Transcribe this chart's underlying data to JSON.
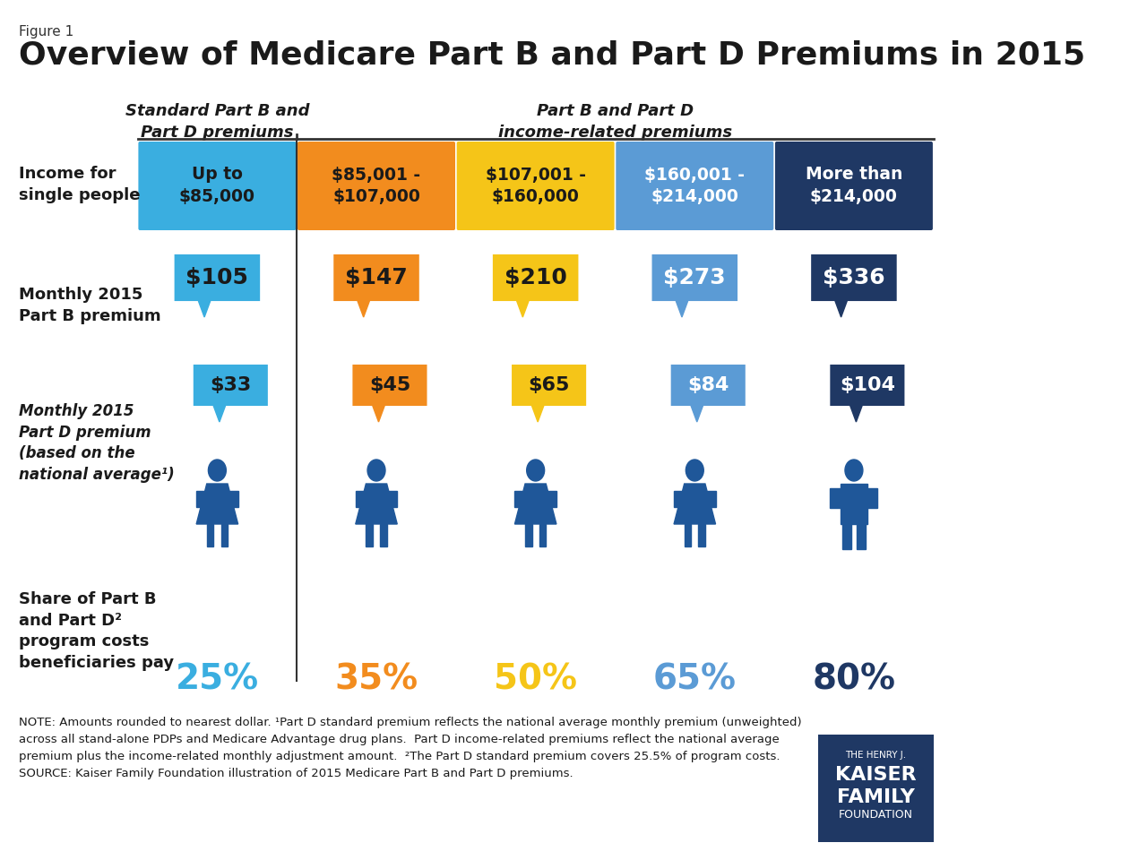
{
  "figure_label": "Figure 1",
  "title": "Overview of Medicare Part B and Part D Premiums in 2015",
  "col_header_left": "Standard Part B and\nPart D premiums",
  "col_header_right": "Part B and Part D\nincome-related premiums",
  "income_labels": [
    "Up to\n$85,000",
    "$85,001 -\n$107,000",
    "$107,001 -\n$160,000",
    "$160,001 -\n$214,000",
    "More than\n$214,000"
  ],
  "income_colors": [
    "#3AAEE0",
    "#F28C1E",
    "#F5C518",
    "#5B9BD5",
    "#1F3864"
  ],
  "income_text_colors": [
    "#1a1a1a",
    "#1a1a1a",
    "#1a1a1a",
    "#ffffff",
    "#ffffff"
  ],
  "part_b_premiums": [
    "$105",
    "$147",
    "$210",
    "$273",
    "$336"
  ],
  "part_d_premiums": [
    "$33",
    "$45",
    "$65",
    "$84",
    "$104"
  ],
  "bubble_colors": [
    "#3AAEE0",
    "#F28C1E",
    "#F5C518",
    "#5B9BD5",
    "#1F3864"
  ],
  "bubble_text_colors": [
    "#1a1a1a",
    "#1a1a1a",
    "#1a1a1a",
    "#ffffff",
    "#ffffff"
  ],
  "share_percentages": [
    "25%",
    "35%",
    "50%",
    "65%",
    "80%"
  ],
  "share_colors": [
    "#3AAEE0",
    "#F28C1E",
    "#F5C518",
    "#5B9BD5",
    "#1F3864"
  ],
  "row_label_income": "Income for\nsingle people",
  "row_label_partb": "Monthly 2015\nPart B premium",
  "row_label_partd": "Monthly 2015\nPart D premium\n(based on the\nnational average¹)",
  "row_label_share": "Share of Part B\nand Part D²\nprogram costs\nbeneficiaries pay",
  "note_text": "NOTE: Amounts rounded to nearest dollar. ¹Part D standard premium reflects the national average monthly premium (unweighted)\nacross all stand-alone PDPs and Medicare Advantage drug plans.  Part D income-related premiums reflect the national average\npremium plus the income-related monthly adjustment amount.  ²The Part D standard premium covers 25.5% of program costs.\nSOURCE: Kaiser Family Foundation illustration of 2015 Medicare Part B and Part D premiums.",
  "bg_color": "#FFFFFF",
  "divider_color": "#333333",
  "person_color_female": "#1F5799",
  "person_color_male": "#1F3864"
}
